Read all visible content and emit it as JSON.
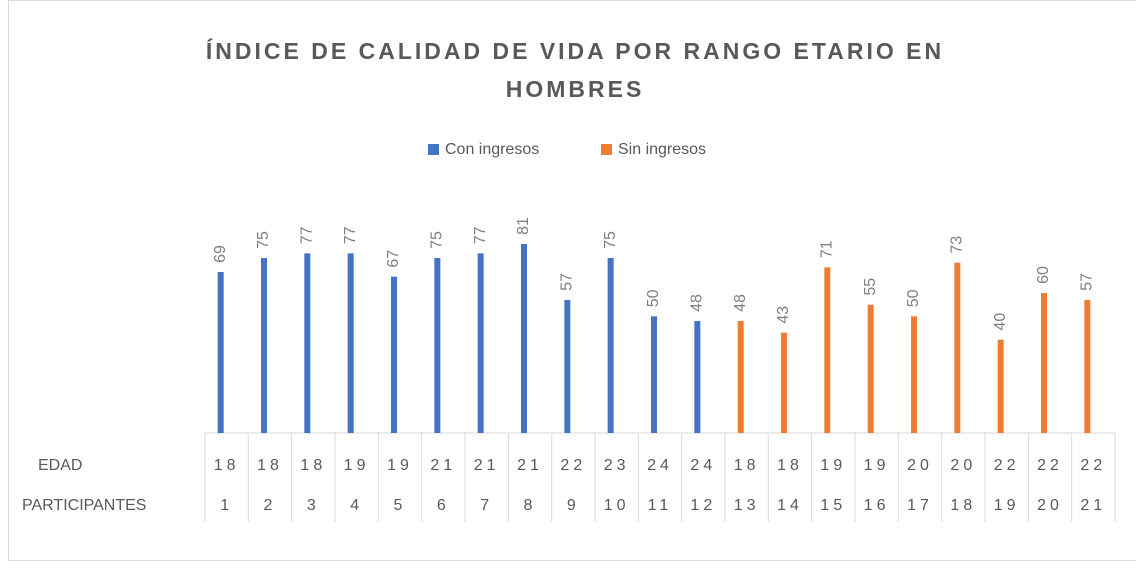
{
  "chart_data": {
    "type": "bar",
    "title": "ÍNDICE DE CALIDAD DE VIDA POR RANGO ETARIO EN HOMBRES",
    "row_labels": [
      "EDAD",
      "PARTICIPANTES"
    ],
    "categories": [
      "1",
      "2",
      "3",
      "4",
      "5",
      "6",
      "7",
      "8",
      "9",
      "10",
      "11",
      "12",
      "13",
      "14",
      "15",
      "16",
      "17",
      "18",
      "19",
      "20",
      "21"
    ],
    "edad": [
      "18",
      "18",
      "18",
      "19",
      "19",
      "21",
      "21",
      "21",
      "22",
      "23",
      "24",
      "24",
      "18",
      "18",
      "19",
      "19",
      "20",
      "20",
      "22",
      "22",
      "22"
    ],
    "series": [
      {
        "name": "Con ingresos",
        "color": "#4472c4",
        "values": [
          69,
          75,
          77,
          77,
          67,
          75,
          77,
          81,
          57,
          75,
          50,
          48,
          null,
          null,
          null,
          null,
          null,
          null,
          null,
          null,
          null
        ]
      },
      {
        "name": "Sin ingresos",
        "color": "#ed7d31",
        "values": [
          null,
          null,
          null,
          null,
          null,
          null,
          null,
          null,
          null,
          null,
          null,
          null,
          48,
          43,
          71,
          55,
          50,
          73,
          40,
          60,
          57
        ]
      }
    ]
  }
}
